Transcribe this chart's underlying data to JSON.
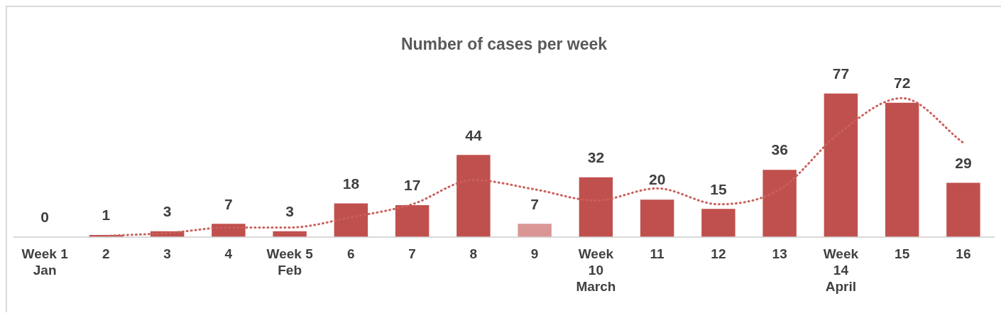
{
  "chart_data": {
    "type": "bar",
    "title": "Number of cases per week",
    "categories": [
      "Week 1\nJan",
      "2",
      "3",
      "4",
      "Week 5\nFeb",
      "6",
      "7",
      "8",
      "9",
      "Week\n10\nMarch",
      "11",
      "12",
      "13",
      "Week\n14\nApril",
      "15",
      "16"
    ],
    "series": [
      {
        "values": [
          0,
          1,
          3,
          7,
          3,
          18,
          17,
          44,
          7,
          32,
          20,
          15,
          36,
          77,
          72,
          29
        ],
        "colors": [
          "#c0504d",
          "#c0504d",
          "#c0504d",
          "#c0504d",
          "#c0504d",
          "#c0504d",
          "#c0504d",
          "#c0504d",
          "#d99694",
          "#c0504d",
          "#c0504d",
          "#c0504d",
          "#c0504d",
          "#c0504d",
          "#c0504d",
          "#c0504d"
        ],
        "data_labels": true
      },
      {
        "type": "line",
        "color": "#c9605c",
        "line_style": "dotted",
        "values": [
          null,
          0.5,
          2,
          5,
          5,
          10.5,
          17.5,
          30.5,
          25.5,
          19.5,
          26,
          17.5,
          25.5,
          56.5,
          74.5,
          50.5
        ]
      }
    ],
    "tick_labels": "x",
    "grid": false,
    "legend": false
  }
}
